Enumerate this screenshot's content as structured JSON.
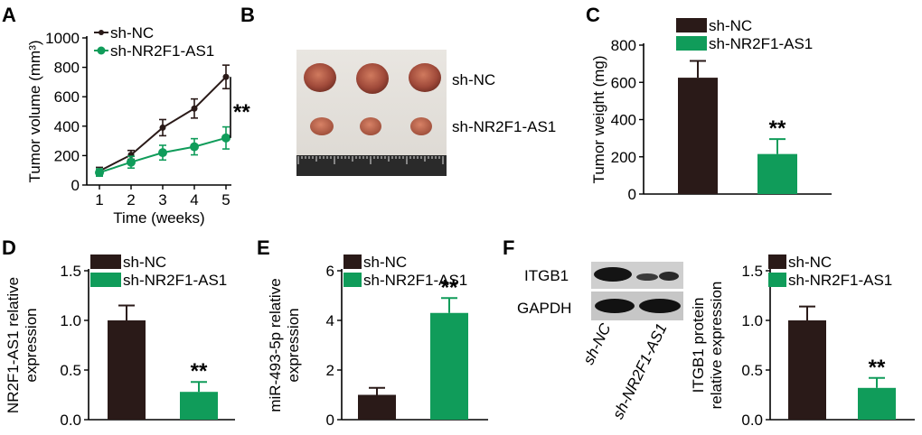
{
  "colors": {
    "nc": "#2a1a18",
    "kd": "#109c5a",
    "line": "#000000"
  },
  "panels": {
    "A": {
      "label": "A"
    },
    "B": {
      "label": "B",
      "row_labels": [
        "sh-NC",
        "sh-NR2F1-AS1"
      ]
    },
    "C": {
      "label": "C"
    },
    "D": {
      "label": "D"
    },
    "E": {
      "label": "E"
    },
    "F": {
      "label": "F",
      "blot_labels": [
        "ITGB1",
        "GAPDH"
      ],
      "lane_labels": [
        "sh-NC",
        "sh-NR2F1-AS1"
      ]
    }
  },
  "chart_data": [
    {
      "id": "A",
      "type": "line",
      "xlabel": "Time (weeks)",
      "ylabel": "Tumor volume (mm³)",
      "x": [
        1,
        2,
        3,
        4,
        5
      ],
      "xlim": [
        0.6,
        5.4
      ],
      "ylim": [
        0,
        1000
      ],
      "yticks": [
        0,
        200,
        400,
        600,
        800,
        1000
      ],
      "series": [
        {
          "name": "sh-NC",
          "color": "#2a1a18",
          "values": [
            95,
            205,
            390,
            520,
            735
          ],
          "errors": [
            25,
            30,
            55,
            65,
            80
          ]
        },
        {
          "name": "sh-NR2F1-AS1",
          "color": "#109c5a",
          "values": [
            85,
            155,
            220,
            260,
            320
          ],
          "errors": [
            25,
            40,
            50,
            55,
            75
          ]
        }
      ],
      "annotation": "**"
    },
    {
      "id": "C",
      "type": "bar",
      "ylabel": "Tumor weight (mg)",
      "categories": [
        "sh-NC",
        "sh-NR2F1-AS1"
      ],
      "ylim": [
        0,
        800
      ],
      "yticks": [
        0,
        200,
        400,
        600,
        800
      ],
      "series": [
        {
          "name": "sh-NC",
          "color": "#2a1a18",
          "value": 625,
          "error": 90
        },
        {
          "name": "sh-NR2F1-AS1",
          "color": "#109c5a",
          "value": 215,
          "error": 80
        }
      ],
      "annotation": "**"
    },
    {
      "id": "D",
      "type": "bar",
      "ylabel": "NR2F1-AS1 relative expression",
      "categories": [
        "sh-NC",
        "sh-NR2F1-AS1"
      ],
      "ylim": [
        0,
        1.5
      ],
      "yticks": [
        "0.0",
        "0.5",
        "1.0",
        "1.5"
      ],
      "series": [
        {
          "name": "sh-NC",
          "color": "#2a1a18",
          "value": 1.0,
          "error": 0.15
        },
        {
          "name": "sh-NR2F1-AS1",
          "color": "#109c5a",
          "value": 0.28,
          "error": 0.1
        }
      ],
      "annotation": "**"
    },
    {
      "id": "E",
      "type": "bar",
      "ylabel": "miR-493-5p relative expression",
      "categories": [
        "sh-NC",
        "sh-NR2F1-AS1"
      ],
      "ylim": [
        0,
        6
      ],
      "yticks": [
        0,
        2,
        4,
        6
      ],
      "series": [
        {
          "name": "sh-NC",
          "color": "#2a1a18",
          "value": 1.0,
          "error": 0.28
        },
        {
          "name": "sh-NR2F1-AS1",
          "color": "#109c5a",
          "value": 4.3,
          "error": 0.6
        }
      ],
      "annotation": "**"
    },
    {
      "id": "F",
      "type": "bar",
      "ylabel": "ITGB1 protein relative expression",
      "categories": [
        "sh-NC",
        "sh-NR2F1-AS1"
      ],
      "ylim": [
        0,
        1.5
      ],
      "yticks": [
        "0.0",
        "0.5",
        "1.0",
        "1.5"
      ],
      "series": [
        {
          "name": "sh-NC",
          "color": "#2a1a18",
          "value": 1.0,
          "error": 0.14
        },
        {
          "name": "sh-NR2F1-AS1",
          "color": "#109c5a",
          "value": 0.32,
          "error": 0.1
        }
      ],
      "annotation": "**"
    }
  ]
}
